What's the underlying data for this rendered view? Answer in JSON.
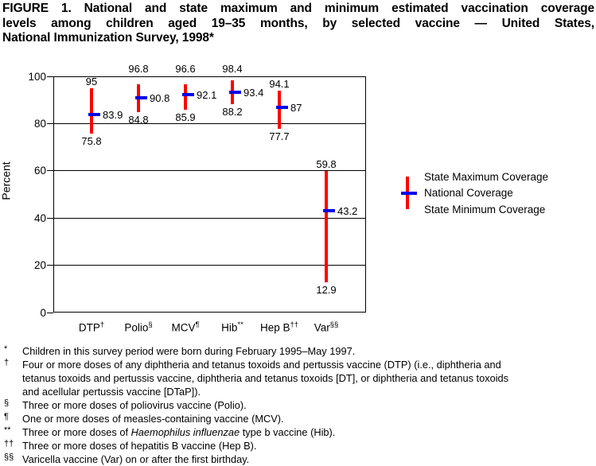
{
  "title": {
    "lines": [
      "FIGURE 1. National and state maximum and minimum estimated vaccination coverage",
      "levels among children aged 19–35 months, by selected vaccine — United States,",
      "National Immunization Survey, 1998*"
    ]
  },
  "chart_data": {
    "type": "bar",
    "variant": "high-low range lines with national coverage tick marker",
    "categories": [
      "DTP",
      "Polio",
      "MCV",
      "Hib",
      "Hep B",
      "Var"
    ],
    "category_superscripts": [
      "†",
      "§",
      "¶",
      "**",
      "††",
      "§§"
    ],
    "series": [
      {
        "name": "State Maximum Coverage",
        "values": [
          95,
          96.8,
          96.6,
          98.4,
          94.1,
          59.8
        ]
      },
      {
        "name": "National Coverage",
        "values": [
          83.9,
          90.8,
          92.1,
          93.4,
          87,
          43.2
        ]
      },
      {
        "name": "State Minimum Coverage",
        "values": [
          75.8,
          84.8,
          85.9,
          88.2,
          77.7,
          12.9
        ]
      }
    ],
    "value_labels": {
      "max": [
        "95",
        "96.8",
        "96.6",
        "98.4",
        "94.1",
        "59.8"
      ],
      "national": [
        "83.9",
        "90.8",
        "92.1",
        "93.4",
        "87",
        "43.2"
      ],
      "min": [
        "75.8",
        "84.8",
        "85.9",
        "88.2",
        "77.7",
        "12.9"
      ]
    },
    "ylabel": "Percent",
    "ylim": [
      0,
      100
    ],
    "yticks": [
      0,
      20,
      40,
      60,
      80,
      100
    ],
    "gridlines": [
      20,
      40,
      60,
      80
    ],
    "legend": [
      "State Maximum Coverage",
      "National Coverage",
      "State Minimum Coverage"
    ],
    "legend_position": "right of plot",
    "colors": {
      "range_line": "#ff0000",
      "national_marker": "#0000e6"
    }
  },
  "footnotes": [
    {
      "symbol": "*",
      "text": "Children in this survey period were born during February 1995–May 1997."
    },
    {
      "symbol": "†",
      "text": "Four or more doses of any diphtheria and tetanus toxoids and pertussis vaccine (DTP) (i.e., diphtheria and"
    },
    {
      "symbol": "",
      "text": "tetanus toxoids and pertussis vaccine, diphtheria and tetanus toxoids [DT], or diphtheria and tetanus toxoids"
    },
    {
      "symbol": "",
      "text": "and acellular pertussis vaccine [DTaP])."
    },
    {
      "symbol": "§",
      "text": "Three or more doses of poliovirus vaccine (Polio)."
    },
    {
      "symbol": "¶",
      "text": "One or more doses of measles-containing vaccine (MCV)."
    },
    {
      "symbol": "**",
      "pre": "Three or more doses of ",
      "italic": "Haemophilus influenzae",
      "post": " type b vaccine (Hib)."
    },
    {
      "symbol": "††",
      "text": "Three or more doses of hepatitis B vaccine (Hep B)."
    },
    {
      "symbol": "§§",
      "text": "Varicella vaccine (Var) on or after the first birthday."
    }
  ]
}
